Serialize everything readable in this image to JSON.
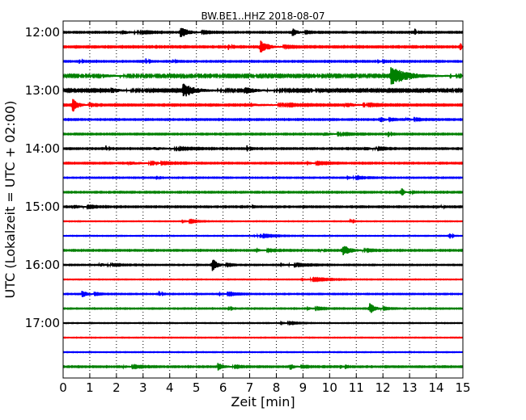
{
  "chart_data": {
    "type": "line",
    "title": "BW.BE1..HHZ 2018-08-07",
    "xlabel": "Zeit  [min]",
    "ylabel": "UTC (Lokalzeit = UTC + 02:00)",
    "xlim": [
      0,
      15
    ],
    "x_ticks": [
      "0",
      "1",
      "2",
      "3",
      "4",
      "5",
      "6",
      "7",
      "8",
      "9",
      "10",
      "11",
      "12",
      "13",
      "14",
      "15"
    ],
    "y_tick_labels": [
      "12:00",
      "13:00",
      "14:00",
      "15:00",
      "16:00",
      "17:00"
    ],
    "traces_per_hour": 4,
    "trace_minutes": 15,
    "grid": true,
    "colors": [
      "#000000",
      "#ff0000",
      "#0000ff",
      "#008000"
    ],
    "traces": [
      {
        "start": "12:00",
        "noise": 0.5,
        "events": [
          {
            "t": 4.4,
            "amp": 7,
            "w": 0.3
          },
          {
            "t": 8.6,
            "amp": 5,
            "w": 0.2
          },
          {
            "t": 13.2,
            "amp": 6,
            "w": 0.05
          },
          {
            "t": 2.2,
            "amp": 2.5,
            "w": 0.4
          }
        ]
      },
      {
        "start": "12:15",
        "noise": 0.6,
        "events": [
          {
            "t": 7.4,
            "amp": 8,
            "w": 0.3
          },
          {
            "t": 14.9,
            "amp": 6,
            "w": 0.05
          },
          {
            "t": 6.2,
            "amp": 4,
            "w": 0.05
          }
        ]
      },
      {
        "start": "12:30",
        "noise": 0.5,
        "events": [
          {
            "t": 0.6,
            "amp": 3,
            "w": 0.05
          },
          {
            "t": 3.1,
            "amp": 4,
            "w": 0.05
          },
          {
            "t": 4.1,
            "amp": 3,
            "w": 0.05
          },
          {
            "t": 11.8,
            "amp": 3,
            "w": 0.1
          }
        ]
      },
      {
        "start": "12:45",
        "noise": 1.0,
        "events": [
          {
            "t": 12.3,
            "amp": 11,
            "w": 0.6
          },
          {
            "t": 9.4,
            "amp": 4,
            "w": 0.05
          },
          {
            "t": 1.5,
            "amp": 2,
            "w": 0.3
          }
        ]
      },
      {
        "start": "13:00",
        "noise": 0.9,
        "events": [
          {
            "t": 4.5,
            "amp": 9,
            "w": 0.4
          },
          {
            "t": 6.8,
            "amp": 4,
            "w": 0.4
          },
          {
            "t": 1.8,
            "amp": 3,
            "w": 0.3
          },
          {
            "t": 9.3,
            "amp": 4,
            "w": 0.05
          }
        ]
      },
      {
        "start": "13:15",
        "noise": 0.6,
        "events": [
          {
            "t": 0.35,
            "amp": 9,
            "w": 0.2
          },
          {
            "t": 10.6,
            "amp": 3,
            "w": 0.4
          },
          {
            "t": 7.1,
            "amp": 1.5,
            "w": 0.8
          }
        ]
      },
      {
        "start": "13:30",
        "noise": 0.5,
        "events": [
          {
            "t": 11.9,
            "amp": 4,
            "w": 0.15
          },
          {
            "t": 12.9,
            "amp": 2,
            "w": 0.2
          }
        ]
      },
      {
        "start": "13:45",
        "noise": 0.5,
        "events": [
          {
            "t": 12.2,
            "amp": 4,
            "w": 0.05
          },
          {
            "t": 9.8,
            "amp": 2,
            "w": 0.4
          }
        ]
      },
      {
        "start": "14:00",
        "noise": 0.5,
        "events": [
          {
            "t": 6.9,
            "amp": 5,
            "w": 0.05
          },
          {
            "t": 1.6,
            "amp": 4,
            "w": 0.05
          },
          {
            "t": 3.4,
            "amp": 2,
            "w": 0.6
          },
          {
            "t": 11.3,
            "amp": 2.5,
            "w": 0.3
          }
        ]
      },
      {
        "start": "14:15",
        "noise": 0.5,
        "events": [
          {
            "t": 2.5,
            "amp": 2,
            "w": 0.6
          },
          {
            "t": 3.5,
            "amp": 3,
            "w": 0.05
          },
          {
            "t": 9.2,
            "amp": 1.5,
            "w": 0.3
          }
        ]
      },
      {
        "start": "14:30",
        "noise": 0.4,
        "events": [
          {
            "t": 3.5,
            "amp": 4,
            "w": 0.05
          },
          {
            "t": 10.7,
            "amp": 1.5,
            "w": 0.3
          }
        ]
      },
      {
        "start": "14:45",
        "noise": 0.5,
        "events": [
          {
            "t": 12.7,
            "amp": 7,
            "w": 0.08
          },
          {
            "t": 13.0,
            "amp": 3,
            "w": 0.05
          }
        ]
      },
      {
        "start": "15:00",
        "noise": 0.5,
        "events": [
          {
            "t": 0.4,
            "amp": 2.5,
            "w": 0.3
          },
          {
            "t": 7.0,
            "amp": 2,
            "w": 0.05
          },
          {
            "t": 14.2,
            "amp": 2,
            "w": 0.05
          }
        ]
      },
      {
        "start": "15:15",
        "noise": 0.3,
        "events": [
          {
            "t": 10.8,
            "amp": 3,
            "w": 0.05
          },
          {
            "t": 4.5,
            "amp": 1.5,
            "w": 0.3
          }
        ]
      },
      {
        "start": "15:30",
        "noise": 0.3,
        "events": [
          {
            "t": 14.5,
            "amp": 5,
            "w": 0.05
          },
          {
            "t": 7.2,
            "amp": 1,
            "w": 0.5
          }
        ]
      },
      {
        "start": "15:45",
        "noise": 0.5,
        "events": [
          {
            "t": 10.5,
            "amp": 7,
            "w": 0.3
          },
          {
            "t": 9.7,
            "amp": 2,
            "w": 0.05
          },
          {
            "t": 7.3,
            "amp": 1.5,
            "w": 0.3
          }
        ]
      },
      {
        "start": "16:00",
        "noise": 0.4,
        "events": [
          {
            "t": 5.6,
            "amp": 8,
            "w": 0.2
          },
          {
            "t": 1.4,
            "amp": 2,
            "w": 0.3
          },
          {
            "t": 8.2,
            "amp": 1.5,
            "w": 0.5
          }
        ]
      },
      {
        "start": "16:15",
        "noise": 0.3,
        "events": [
          {
            "t": 9.0,
            "amp": 1.2,
            "w": 0.6
          }
        ]
      },
      {
        "start": "16:30",
        "noise": 0.4,
        "events": [
          {
            "t": 0.7,
            "amp": 5,
            "w": 0.2
          },
          {
            "t": 3.6,
            "amp": 4,
            "w": 0.05
          },
          {
            "t": 5.9,
            "amp": 1.5,
            "w": 0.3
          }
        ]
      },
      {
        "start": "16:45",
        "noise": 0.4,
        "events": [
          {
            "t": 11.5,
            "amp": 7,
            "w": 0.2
          },
          {
            "t": 6.2,
            "amp": 3,
            "w": 0.05
          },
          {
            "t": 9.2,
            "amp": 1.5,
            "w": 0.3
          }
        ]
      },
      {
        "start": "17:00",
        "noise": 0.3,
        "events": [
          {
            "t": 8.2,
            "amp": 1.5,
            "w": 0.3
          }
        ]
      },
      {
        "start": "17:15",
        "noise": 0.3,
        "events": []
      },
      {
        "start": "17:30",
        "noise": 0.3,
        "events": []
      },
      {
        "start": "17:45",
        "noise": 0.5,
        "events": [
          {
            "t": 5.8,
            "amp": 5,
            "w": 0.25
          },
          {
            "t": 8.5,
            "amp": 4,
            "w": 0.2
          },
          {
            "t": 10.4,
            "amp": 3,
            "w": 0.1
          },
          {
            "t": 2.3,
            "amp": 1.5,
            "w": 0.3
          }
        ]
      }
    ]
  }
}
